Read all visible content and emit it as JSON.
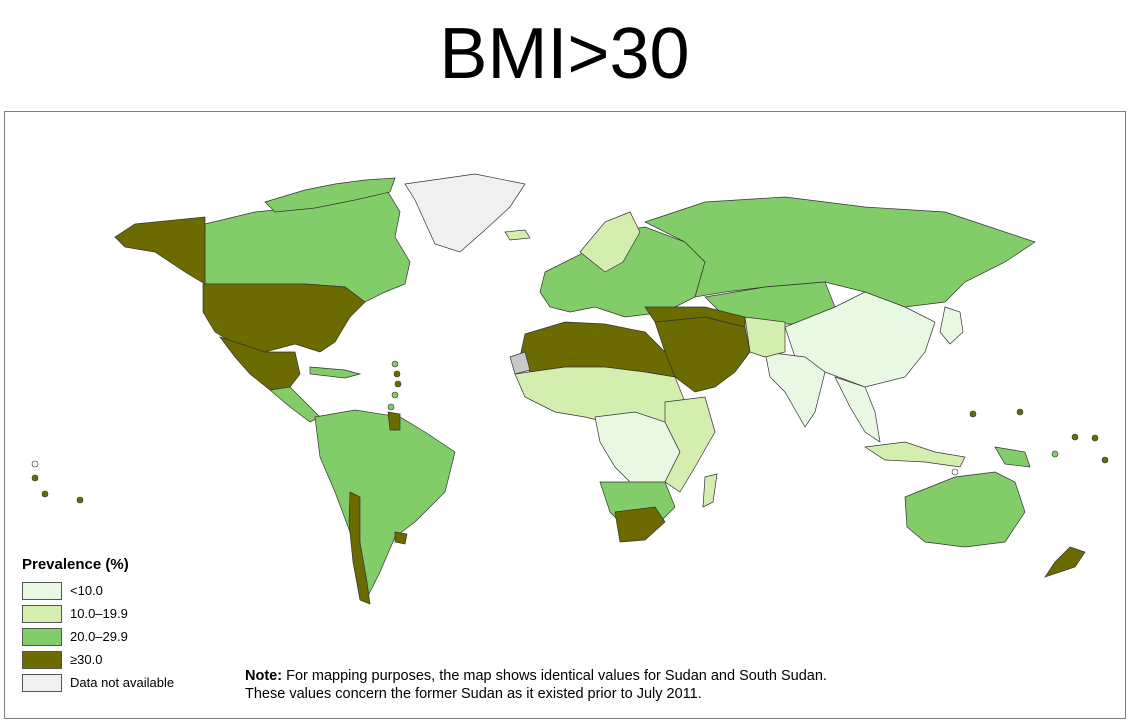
{
  "title": "BMI>30",
  "legend": {
    "title": "Prevalence (%)",
    "items": [
      {
        "label": "<10.0",
        "color": "#e8f8e3"
      },
      {
        "label": "10.0–19.9",
        "color": "#d4eeb0"
      },
      {
        "label": "20.0–29.9",
        "color": "#83cc6a"
      },
      {
        "label": "≥30.0",
        "color": "#6b6b00"
      },
      {
        "label": "Data not available",
        "color": "#f0f0f0"
      }
    ]
  },
  "note": {
    "label": "Note:",
    "line1": "For mapping purposes, the map shows identical values for Sudan and South Sudan.",
    "line2": "These values concern the former Sudan as it existed prior to July 2011."
  },
  "colors": {
    "ocean": "#ffffff",
    "border": "#333333"
  }
}
